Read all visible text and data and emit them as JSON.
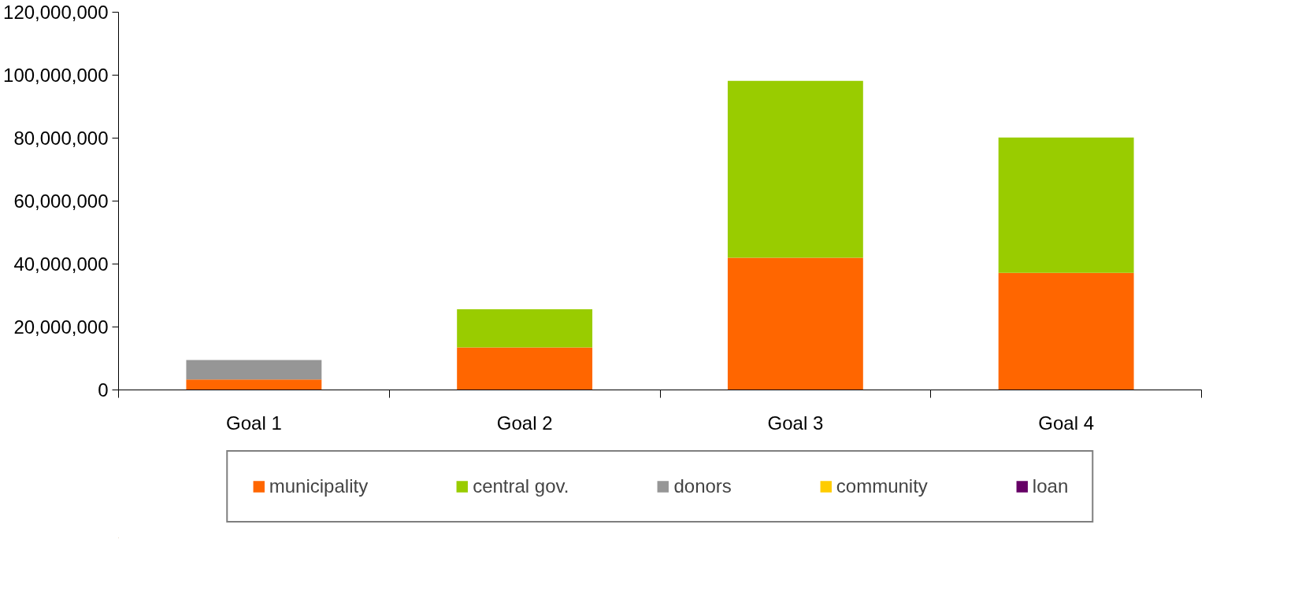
{
  "chart_data": {
    "type": "bar",
    "stacked": true,
    "categories": [
      "Goal 1",
      "Goal 2",
      "Goal 3",
      "Goal 4"
    ],
    "series": [
      {
        "name": "municipality",
        "color": "#ff6600",
        "values": [
          3300000,
          13500000,
          42000000,
          37200000
        ]
      },
      {
        "name": "central gov.",
        "color": "#99cc00",
        "values": [
          0,
          12100000,
          56200000,
          43000000
        ]
      },
      {
        "name": "donors",
        "color": "#969696",
        "values": [
          6200000,
          0,
          0,
          0
        ]
      },
      {
        "name": "community",
        "color": "#ffcc00",
        "values": [
          0,
          0,
          0,
          0
        ]
      },
      {
        "name": "loan",
        "color": "#660066",
        "values": [
          0,
          0,
          0,
          0
        ]
      }
    ],
    "ylim": [
      0,
      120000000
    ],
    "yticks": [
      {
        "value": 0,
        "label": "0"
      },
      {
        "value": 20000000,
        "label": "20,000,000"
      },
      {
        "value": 40000000,
        "label": "40,000,000"
      },
      {
        "value": 60000000,
        "label": "60,000,000"
      },
      {
        "value": 80000000,
        "label": "80,000,000"
      },
      {
        "value": 100000000,
        "label": "100,000,000"
      },
      {
        "value": 120000000,
        "label": "120,000,000"
      }
    ],
    "grid": false,
    "legend": "bottom"
  }
}
